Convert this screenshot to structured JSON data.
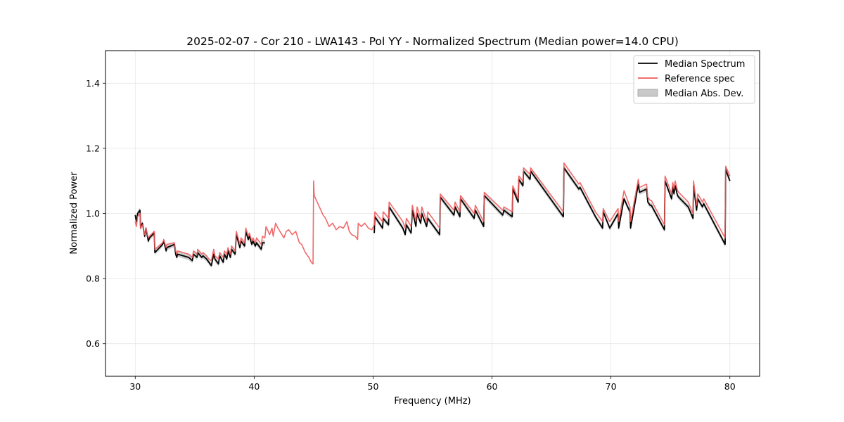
{
  "chart_data": {
    "type": "line",
    "title": "2025-02-07 - Cor 210 - LWA143 - Pol YY - Normalized Spectrum (Median power=14.0 CPU)",
    "xlabel": "Frequency (MHz)",
    "ylabel": "Normalized Power",
    "xlim": [
      27.5,
      82.5
    ],
    "ylim": [
      0.5,
      1.5
    ],
    "xticks": [
      30,
      40,
      50,
      60,
      70,
      80
    ],
    "yticks": [
      0.6,
      0.8,
      1.0,
      1.2,
      1.4
    ],
    "xtick_labels": [
      "30",
      "40",
      "50",
      "60",
      "70",
      "80"
    ],
    "ytick_labels": [
      "0.6",
      "0.8",
      "1.0",
      "1.2",
      "1.4"
    ],
    "grid": true,
    "legend_location": "top-right",
    "series": [
      {
        "name": "Median Spectrum",
        "color": "#000000",
        "segments": [
          {
            "x": [
              30.0,
              30.1,
              30.2,
              30.4,
              30.45,
              30.6,
              30.8,
              30.9,
              31.1,
              31.2,
              31.6,
              31.65,
              32.3,
              32.4,
              32.6,
              32.65,
              33.3,
              33.4,
              33.5,
              33.55,
              34.5,
              34.8,
              34.9,
              35.2,
              35.25,
              35.6,
              35.7,
              36.0,
              36.2,
              36.4,
              36.6,
              36.7,
              37.0,
              37.1,
              37.4,
              37.5,
              37.7,
              37.8,
              38.0,
              38.1,
              38.4,
              38.5,
              38.8,
              38.9,
              39.2,
              39.3,
              39.5,
              39.6,
              39.8,
              39.9,
              40.1,
              40.2,
              40.6,
              40.7,
              40.9
            ],
            "y": [
              0.995,
              0.975,
              1.0,
              1.01,
              0.955,
              0.97,
              0.93,
              0.955,
              0.915,
              0.925,
              0.94,
              0.88,
              0.905,
              0.915,
              0.885,
              0.895,
              0.905,
              0.875,
              0.865,
              0.875,
              0.865,
              0.855,
              0.875,
              0.865,
              0.88,
              0.865,
              0.87,
              0.86,
              0.85,
              0.84,
              0.875,
              0.86,
              0.845,
              0.87,
              0.85,
              0.875,
              0.86,
              0.885,
              0.865,
              0.89,
              0.875,
              0.935,
              0.895,
              0.915,
              0.9,
              0.945,
              0.92,
              0.93,
              0.905,
              0.915,
              0.9,
              0.91,
              0.89,
              0.91,
              0.91
            ]
          },
          {
            "x": [
              50.1,
              50.15,
              50.8,
              50.85,
              51.3,
              51.35,
              52.5,
              52.7,
              52.8,
              53.2,
              53.3,
              53.6,
              53.7,
              54.0,
              54.1,
              54.5,
              54.6,
              55.6,
              55.65,
              56.8,
              56.9,
              57.3,
              57.35,
              58.5,
              58.6,
              59.3,
              59.35,
              60.9,
              61.0,
              61.7,
              61.75,
              62.2,
              62.25,
              62.6,
              62.65,
              63.2,
              63.25,
              66.0,
              66.05,
              67.3,
              67.4,
              68.7,
              69.3,
              69.35,
              69.9,
              70.6,
              70.65,
              71.1,
              71.6,
              71.65,
              72.3,
              72.4,
              73.0,
              73.1,
              73.3,
              73.4,
              74.5,
              74.55,
              75.1,
              75.2,
              75.3,
              75.4,
              75.6,
              75.7,
              76.5,
              76.9,
              76.95,
              77.2,
              77.3,
              77.7,
              77.8,
              79.6,
              79.65,
              80.0
            ],
            "y": [
              0.94,
              0.99,
              0.955,
              0.985,
              0.965,
              1.02,
              0.955,
              0.935,
              0.965,
              0.94,
              1.01,
              0.96,
              1.0,
              0.97,
              1.0,
              0.96,
              0.985,
              0.935,
              1.05,
              0.995,
              1.02,
              0.99,
              1.045,
              0.985,
              1.01,
              0.96,
              1.055,
              0.995,
              1.01,
              0.99,
              1.075,
              1.035,
              1.105,
              1.085,
              1.13,
              1.105,
              1.13,
              0.99,
              1.14,
              1.075,
              1.08,
              0.99,
              0.955,
              1.005,
              0.955,
              1.0,
              0.955,
              1.045,
              1.005,
              0.955,
              1.09,
              1.065,
              1.075,
              1.035,
              1.025,
              1.025,
              0.95,
              1.1,
              1.045,
              1.08,
              1.06,
              1.085,
              1.055,
              1.05,
              1.02,
              0.985,
              1.085,
              1.01,
              1.045,
              1.02,
              1.03,
              0.905,
              1.135,
              1.1
            ]
          }
        ]
      },
      {
        "name": "Reference spec",
        "color": "#ef5a5a",
        "x": [
          30.0,
          30.1,
          30.2,
          30.4,
          30.45,
          30.6,
          30.8,
          30.9,
          31.1,
          31.2,
          31.6,
          31.65,
          32.3,
          32.4,
          32.6,
          32.65,
          33.3,
          33.4,
          33.5,
          33.55,
          34.5,
          34.8,
          34.9,
          35.2,
          35.25,
          35.6,
          35.7,
          36.0,
          36.2,
          36.4,
          36.6,
          36.7,
          37.0,
          37.1,
          37.4,
          37.5,
          37.7,
          37.8,
          38.0,
          38.1,
          38.4,
          38.5,
          38.8,
          38.9,
          39.2,
          39.3,
          39.5,
          39.6,
          39.8,
          39.9,
          40.1,
          40.2,
          40.6,
          40.7,
          40.9,
          41.0,
          41.3,
          41.5,
          41.6,
          41.8,
          42.0,
          42.5,
          42.7,
          42.9,
          43.2,
          43.5,
          43.8,
          44.0,
          44.3,
          44.6,
          44.8,
          44.95,
          45.0,
          45.05,
          45.3,
          45.8,
          46.0,
          46.3,
          46.6,
          46.9,
          47.2,
          47.5,
          47.8,
          48.0,
          48.2,
          48.5,
          48.7,
          48.75,
          49.0,
          49.3,
          49.6,
          49.9,
          50.1,
          50.15,
          50.8,
          50.85,
          51.3,
          51.35,
          52.5,
          52.7,
          52.8,
          53.2,
          53.3,
          53.6,
          53.7,
          54.0,
          54.1,
          54.5,
          54.6,
          55.6,
          55.65,
          56.8,
          56.9,
          57.3,
          57.35,
          58.5,
          58.6,
          59.3,
          59.35,
          60.9,
          61.0,
          61.7,
          61.75,
          62.2,
          62.25,
          62.6,
          62.65,
          63.2,
          63.25,
          66.0,
          66.05,
          67.3,
          67.4,
          68.7,
          69.3,
          69.35,
          69.9,
          70.6,
          70.65,
          71.1,
          71.6,
          71.65,
          72.3,
          72.4,
          73.0,
          73.1,
          73.3,
          73.4,
          74.5,
          74.55,
          75.1,
          75.2,
          75.3,
          75.4,
          75.6,
          75.7,
          76.5,
          76.9,
          76.95,
          77.2,
          77.3,
          77.7,
          77.8,
          79.6,
          79.65,
          80.0
        ],
        "y": [
          0.975,
          0.96,
          0.99,
          1.0,
          0.955,
          0.965,
          0.935,
          0.955,
          0.925,
          0.93,
          0.945,
          0.89,
          0.91,
          0.92,
          0.895,
          0.905,
          0.91,
          0.885,
          0.875,
          0.885,
          0.875,
          0.865,
          0.885,
          0.875,
          0.89,
          0.875,
          0.88,
          0.87,
          0.86,
          0.855,
          0.89,
          0.87,
          0.86,
          0.88,
          0.865,
          0.885,
          0.875,
          0.895,
          0.875,
          0.9,
          0.885,
          0.945,
          0.905,
          0.925,
          0.91,
          0.955,
          0.93,
          0.94,
          0.915,
          0.925,
          0.91,
          0.925,
          0.905,
          0.93,
          0.925,
          0.96,
          0.935,
          0.955,
          0.93,
          0.97,
          0.955,
          0.925,
          0.945,
          0.95,
          0.935,
          0.945,
          0.91,
          0.905,
          0.88,
          0.865,
          0.85,
          0.845,
          1.1,
          1.055,
          1.035,
          0.995,
          0.985,
          0.96,
          0.97,
          0.95,
          0.96,
          0.955,
          0.975,
          0.945,
          0.935,
          0.93,
          0.92,
          0.97,
          0.96,
          0.97,
          0.955,
          0.95,
          0.965,
          1.005,
          0.975,
          1.005,
          0.985,
          1.035,
          0.975,
          0.955,
          0.985,
          0.96,
          1.025,
          0.975,
          1.02,
          0.985,
          1.02,
          0.975,
          1.005,
          0.955,
          1.06,
          1.01,
          1.035,
          1.005,
          1.055,
          1.0,
          1.025,
          0.975,
          1.065,
          1.01,
          1.02,
          1.005,
          1.085,
          1.045,
          1.115,
          1.1,
          1.14,
          1.12,
          1.14,
          1.005,
          1.155,
          1.09,
          1.095,
          1.005,
          0.975,
          1.015,
          0.975,
          1.015,
          0.975,
          1.07,
          1.02,
          0.975,
          1.105,
          1.08,
          1.09,
          1.05,
          1.04,
          1.04,
          0.965,
          1.115,
          1.06,
          1.095,
          1.075,
          1.1,
          1.07,
          1.065,
          1.035,
          1.0,
          1.1,
          1.025,
          1.06,
          1.035,
          1.045,
          0.925,
          1.145,
          1.115
        ]
      },
      {
        "name": "Median Abs. Dev.",
        "color": "#bdbdbd",
        "type": "band",
        "half_width": 0.008
      }
    ]
  }
}
